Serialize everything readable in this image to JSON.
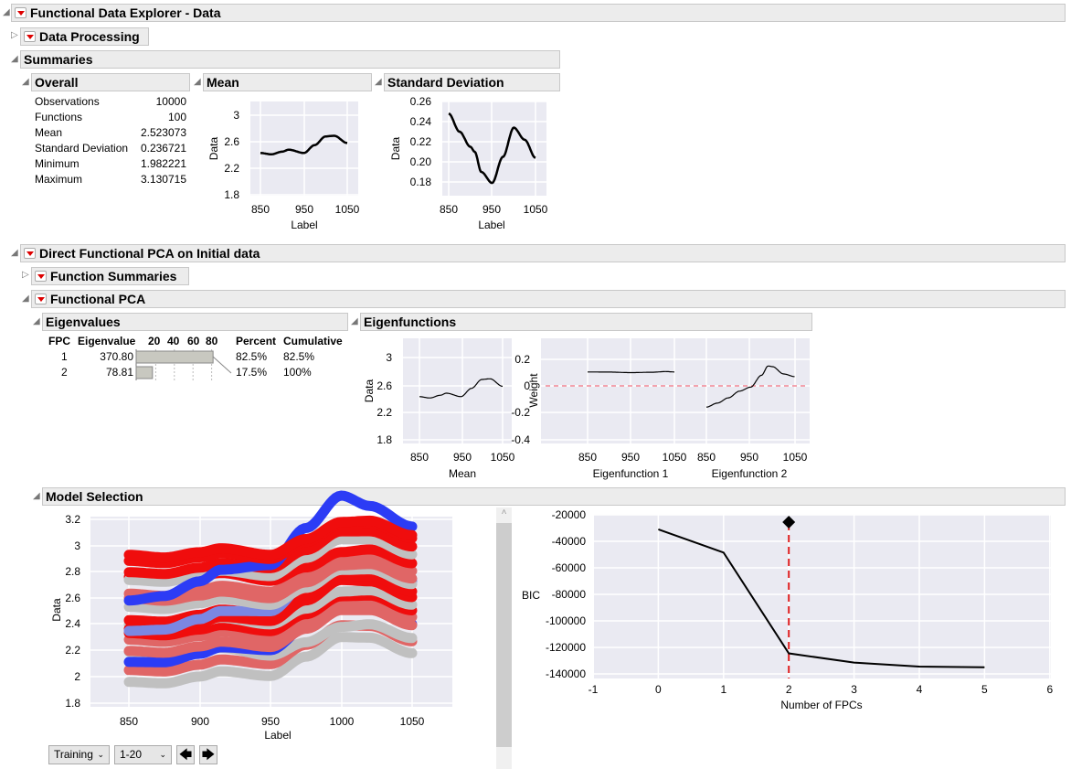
{
  "headers": {
    "main": "Functional Data Explorer - Data",
    "data_processing": "Data Processing",
    "summaries": "Summaries",
    "overall": "Overall",
    "mean": "Mean",
    "std": "Standard Deviation",
    "dfpca": "Direct Functional PCA on Initial data",
    "function_summaries": "Function Summaries",
    "functional_pca": "Functional PCA",
    "eigenvalues": "Eigenvalues",
    "eigenfunctions": "Eigenfunctions",
    "model_selection": "Model Selection"
  },
  "overall": [
    {
      "label": "Observations",
      "value": "10000"
    },
    {
      "label": "Functions",
      "value": "100"
    },
    {
      "label": "Mean",
      "value": "2.523073"
    },
    {
      "label": "Standard Deviation",
      "value": "0.236721"
    },
    {
      "label": "Minimum",
      "value": "1.982221"
    },
    {
      "label": "Maximum",
      "value": "3.130715"
    }
  ],
  "eigen_table": {
    "headers": {
      "fpc": "FPC",
      "eigenvalue": "Eigenvalue",
      "axis": [
        "20",
        "40",
        "60",
        "80"
      ],
      "percent": "Percent",
      "cumulative": "Cumulative"
    },
    "rows": [
      {
        "fpc": "1",
        "eigenvalue": "370.80",
        "percent": "82.5%",
        "cumulative": "82.5%",
        "pct": 82.5
      },
      {
        "fpc": "2",
        "eigenvalue": "78.81",
        "percent": "17.5%",
        "cumulative": "100%",
        "pct": 17.5
      }
    ]
  },
  "controls": {
    "set": "Training",
    "range": "1-20"
  },
  "colors": {
    "red": "#f00d0d",
    "pink": "#e06666",
    "gray": "#c0c0c0",
    "blue": "#2c3cf5",
    "lightblue": "#7b87e3",
    "plotbg": "#eaeaf2"
  },
  "chart_data": [
    {
      "type": "line",
      "name": "mean",
      "xlabel": "Label",
      "ylabel": "Data",
      "xticks": [
        "850",
        "950",
        "1050"
      ],
      "yticks": [
        "3",
        "2.6",
        "2.2",
        "1.8"
      ],
      "ylim": [
        1.8,
        3.2
      ],
      "x": [
        850,
        875,
        900,
        915,
        950,
        975,
        1000,
        1020,
        1050
      ],
      "y": [
        2.43,
        2.41,
        2.45,
        2.48,
        2.43,
        2.55,
        2.68,
        2.69,
        2.58
      ]
    },
    {
      "type": "line",
      "name": "std",
      "xlabel": "Label",
      "ylabel": "Data",
      "xticks": [
        "850",
        "950",
        "1050"
      ],
      "yticks": [
        "0.26",
        "0.24",
        "0.22",
        "0.20",
        "0.18"
      ],
      "ylim": [
        0.17,
        0.26
      ],
      "x": [
        850,
        875,
        900,
        910,
        925,
        950,
        975,
        1000,
        1025,
        1050
      ],
      "y": [
        0.248,
        0.23,
        0.215,
        0.21,
        0.19,
        0.179,
        0.205,
        0.234,
        0.222,
        0.204
      ]
    },
    {
      "type": "line",
      "name": "eigen-mean",
      "xlabel": "Mean",
      "ylabel": "Data",
      "xticks": [
        "850",
        "950",
        "1050"
      ],
      "yticks": [
        "3",
        "2.6",
        "2.2",
        "1.8"
      ]
    },
    {
      "type": "line",
      "name": "eigenfunctions",
      "ylabel": "Weight",
      "yticks": [
        "0.2",
        "0",
        "-0.2",
        "-0.4"
      ],
      "ylim": [
        -0.45,
        0.3
      ],
      "xticks": [
        "850",
        "950",
        "1050"
      ],
      "xlabels": [
        "Eigenfunction 1",
        "Eigenfunction 2"
      ],
      "ef1": {
        "x": [
          850,
          900,
          950,
          1000,
          1030,
          1050
        ],
        "y": [
          0.105,
          0.104,
          0.1,
          0.103,
          0.108,
          0.105
        ]
      },
      "ef2": {
        "x": [
          850,
          875,
          900,
          925,
          950,
          975,
          990,
          1000,
          1025,
          1050
        ],
        "y": [
          -0.16,
          -0.13,
          -0.09,
          -0.04,
          -0.01,
          0.08,
          0.15,
          0.145,
          0.09,
          0.07
        ]
      }
    },
    {
      "type": "line",
      "name": "model-selection-curves",
      "xlabel": "Label",
      "ylabel": "Data",
      "xticks": [
        "850",
        "900",
        "950",
        "1000",
        "1050"
      ],
      "yticks": [
        "3.2",
        "3",
        "2.8",
        "2.6",
        "2.4",
        "2.2",
        "2",
        "1.8"
      ],
      "ylim": [
        1.8,
        3.2
      ],
      "curves": [
        {
          "level": -0.42,
          "c": 0.3,
          "color": "gray"
        },
        {
          "level": -0.33,
          "c": 0.3,
          "color": "pink"
        },
        {
          "level": -0.27,
          "c": -0.2,
          "color": "gray"
        },
        {
          "level": -0.22,
          "c": 0.6,
          "color": "blue"
        },
        {
          "level": -0.2,
          "c": 0.2,
          "color": "pink"
        },
        {
          "level": -0.13,
          "c": 0.1,
          "color": "pink"
        },
        {
          "level": -0.08,
          "c": 0.1,
          "color": "red"
        },
        {
          "level": -0.03,
          "c": 0,
          "color": "gray"
        },
        {
          "level": 0.0,
          "c": 0.4,
          "color": "red"
        },
        {
          "level": 0.05,
          "c": 0.3,
          "color": "red"
        },
        {
          "level": 0.08,
          "c": 1.0,
          "color": "lightblue"
        },
        {
          "level": 0.12,
          "c": 0.1,
          "color": "gray"
        },
        {
          "level": 0.17,
          "c": 0,
          "color": "pink"
        },
        {
          "level": 0.22,
          "c": 0.1,
          "color": "pink"
        },
        {
          "level": 0.3,
          "c": -0.2,
          "color": "red"
        },
        {
          "level": 0.34,
          "c": 0.2,
          "color": "gray"
        },
        {
          "level": 0.4,
          "c": 0.2,
          "color": "red"
        },
        {
          "level": 0.44,
          "c": 1.8,
          "color": "blue"
        },
        {
          "level": 0.47,
          "c": 0.1,
          "color": "red"
        },
        {
          "level": 0.5,
          "c": 0,
          "color": "red"
        }
      ]
    },
    {
      "type": "line",
      "name": "bic",
      "xlabel": "Number of FPCs",
      "ylabel": "BIC",
      "xticks": [
        "-1",
        "0",
        "1",
        "2",
        "3",
        "4",
        "5",
        "6"
      ],
      "yticks": [
        "-20000",
        "-40000",
        "-60000",
        "-80000",
        "-100000",
        "-120000",
        "-140000"
      ],
      "xlim": [
        -1,
        6
      ],
      "ylim": [
        -140000,
        -20000
      ],
      "x": [
        0,
        1,
        2,
        3,
        4,
        5
      ],
      "y": [
        -31000,
        -48500,
        -124500,
        -131500,
        -134500,
        -135000
      ],
      "selected": 2
    }
  ]
}
